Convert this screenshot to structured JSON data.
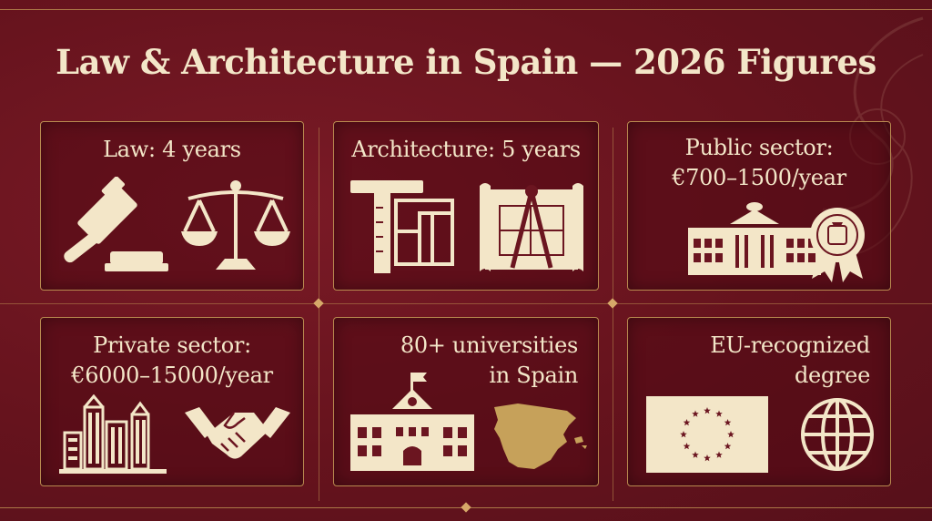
{
  "title": "Law & Architecture in Spain — 2026 Figures",
  "cards": {
    "law": {
      "label": "Law: 4 years",
      "icons": [
        "gavel-icon",
        "scales-icon"
      ]
    },
    "architecture": {
      "label": "Architecture: 5 years",
      "icons": [
        "t-square-blueprint-icon",
        "compass-blueprint-icon"
      ]
    },
    "public": {
      "line1": "Public sector:",
      "line2": "€700–1500/year",
      "icons": [
        "government-building-icon",
        "seal-ribbon-icon"
      ]
    },
    "private": {
      "line1": "Private sector:",
      "line2": "€6000–15000/year",
      "icons": [
        "skyscrapers-icon",
        "handshake-icon"
      ]
    },
    "universities": {
      "line1": "80+ universities",
      "line2": "in Spain",
      "icons": [
        "university-building-icon",
        "spain-map-icon"
      ]
    },
    "eu": {
      "line1": "EU-recognized",
      "line2": "degree",
      "icons": [
        "eu-flag-icon",
        "globe-icon"
      ]
    }
  },
  "colors": {
    "background": "#6b1520",
    "accent": "#b8894f",
    "text": "#f3e6c8",
    "map": "#c6a15a"
  }
}
